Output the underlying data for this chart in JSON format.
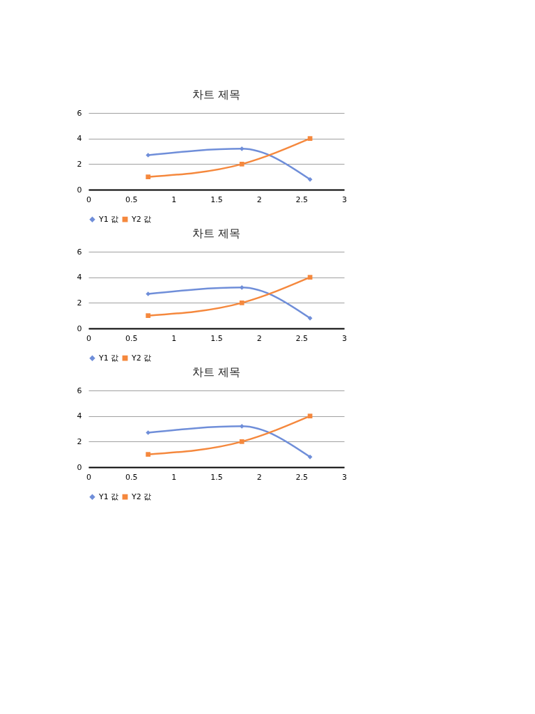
{
  "chart_data": [
    {
      "type": "line",
      "title": "차트 제목",
      "xlim": [
        0,
        3
      ],
      "xticks": [
        0,
        0.5,
        1,
        1.5,
        2,
        2.5,
        3
      ],
      "ylim": [
        0,
        6
      ],
      "yticks": [
        0,
        2,
        4,
        6
      ],
      "grid": "y",
      "legend": "bottom",
      "series": [
        {
          "name": "Y1 값",
          "color": "#6f8ed9",
          "marker": "diamond",
          "x": [
            0.7,
            1.8,
            2.6
          ],
          "values": [
            2.7,
            3.2,
            0.8
          ]
        },
        {
          "name": "Y2 값",
          "color": "#f5883d",
          "marker": "square",
          "x": [
            0.7,
            1.8,
            2.6
          ],
          "values": [
            1,
            2,
            4
          ]
        }
      ]
    },
    {
      "type": "line",
      "title": "차트 제목",
      "xlim": [
        0,
        3
      ],
      "xticks": [
        0,
        0.5,
        1,
        1.5,
        2,
        2.5,
        3
      ],
      "ylim": [
        0,
        6
      ],
      "yticks": [
        0,
        2,
        4,
        6
      ],
      "grid": "y",
      "legend": "bottom",
      "series": [
        {
          "name": "Y1 값",
          "color": "#6f8ed9",
          "marker": "diamond",
          "x": [
            0.7,
            1.8,
            2.6
          ],
          "values": [
            2.7,
            3.2,
            0.8
          ]
        },
        {
          "name": "Y2 값",
          "color": "#f5883d",
          "marker": "square",
          "x": [
            0.7,
            1.8,
            2.6
          ],
          "values": [
            1,
            2,
            4
          ]
        }
      ]
    },
    {
      "type": "line",
      "title": "차트 제목",
      "xlim": [
        0,
        3
      ],
      "xticks": [
        0,
        0.5,
        1,
        1.5,
        2,
        2.5,
        3
      ],
      "ylim": [
        0,
        6
      ],
      "yticks": [
        0,
        2,
        4,
        6
      ],
      "grid": "y",
      "legend": "bottom",
      "series": [
        {
          "name": "Y1 값",
          "color": "#6f8ed9",
          "marker": "diamond",
          "x": [
            0.7,
            1.8,
            2.6
          ],
          "values": [
            2.7,
            3.2,
            0.8
          ]
        },
        {
          "name": "Y2 값",
          "color": "#f5883d",
          "marker": "square",
          "x": [
            0.7,
            1.8,
            2.6
          ],
          "values": [
            1,
            2,
            4
          ]
        }
      ]
    }
  ]
}
